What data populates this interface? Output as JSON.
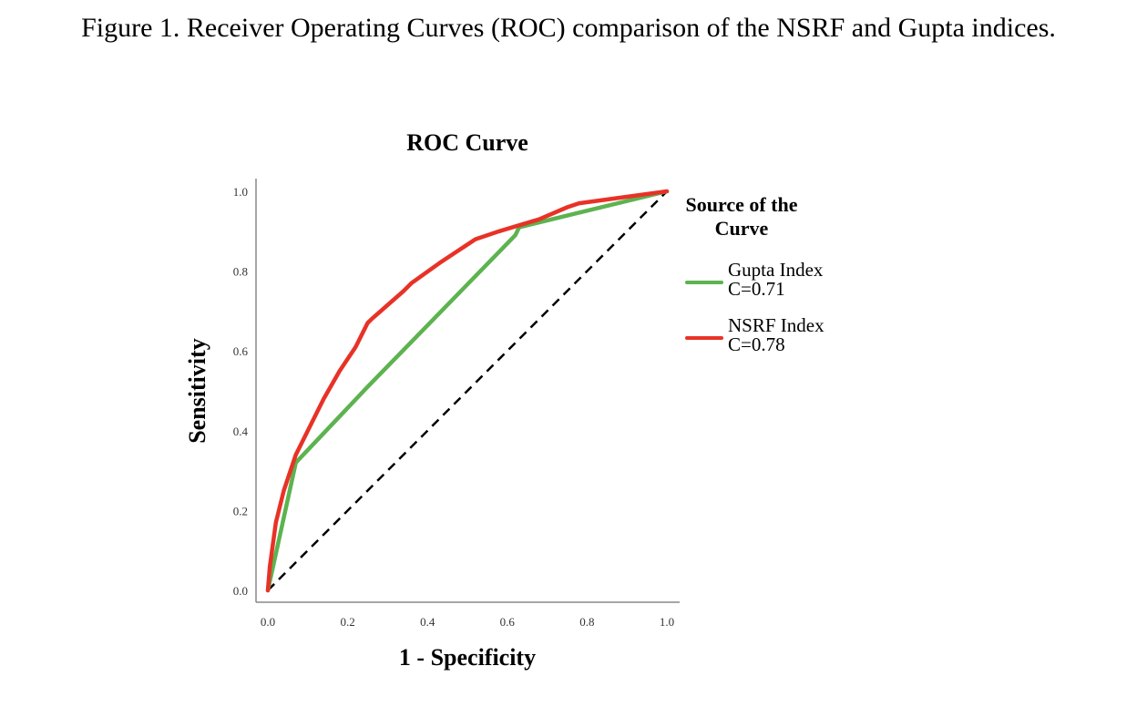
{
  "caption": "Figure 1. Receiver Operating Curves (ROC) comparison of the NSRF and Gupta indices.",
  "chart_data": {
    "type": "line",
    "title": "ROC Curve",
    "xlabel": "1 - Specificity",
    "ylabel": "Sensitivity",
    "xlim": [
      0,
      1
    ],
    "ylim": [
      0,
      1
    ],
    "grid": false,
    "xticks": [
      "0.0",
      "0.2",
      "0.4",
      "0.6",
      "0.8",
      "1.0"
    ],
    "yticks": [
      "0.0",
      "0.2",
      "0.4",
      "0.6",
      "0.8",
      "1.0"
    ],
    "legend": {
      "title": "Source of the Curve",
      "placement": "right"
    },
    "reference_line": {
      "name": "diagonal",
      "x": [
        0,
        1
      ],
      "y": [
        0,
        1
      ],
      "color": "#000000",
      "style": "dashed"
    },
    "series": [
      {
        "name": "Gupta Index",
        "stat": "C=0.71",
        "color": "#5cb34f",
        "x": [
          0.0,
          0.07,
          0.25,
          0.62,
          0.63,
          1.0
        ],
        "y": [
          0.0,
          0.32,
          0.51,
          0.89,
          0.91,
          1.0
        ]
      },
      {
        "name": "NSRF Index",
        "stat": "C=0.78",
        "color": "#e83227",
        "x": [
          0.0,
          0.005,
          0.02,
          0.04,
          0.07,
          0.11,
          0.14,
          0.18,
          0.22,
          0.25,
          0.26,
          0.34,
          0.36,
          0.43,
          0.52,
          0.58,
          0.68,
          0.75,
          0.78,
          1.0
        ],
        "y": [
          0.0,
          0.06,
          0.17,
          0.25,
          0.34,
          0.42,
          0.48,
          0.55,
          0.61,
          0.67,
          0.68,
          0.75,
          0.77,
          0.82,
          0.88,
          0.9,
          0.93,
          0.96,
          0.97,
          1.0
        ]
      }
    ]
  }
}
